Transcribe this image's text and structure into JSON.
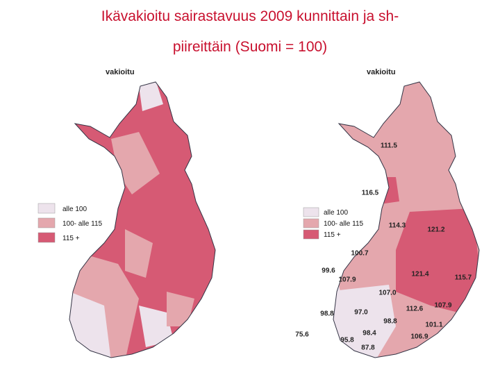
{
  "title_lines": [
    "Ikävakioitu sairastavuus 2009 kunnittain ja sh-",
    "piireittäin (Suomi = 100)"
  ],
  "maps": [
    {
      "heading": "vakioitu",
      "legend": [
        "alle 100",
        "100- alle 115",
        "115 +"
      ]
    },
    {
      "heading": "vakioitu",
      "legend": [
        "alle 100",
        "100- alle 115",
        "115 +"
      ],
      "labels": [
        "111.5",
        "116.5",
        "114.3",
        "121.2",
        "100.7",
        "99.6",
        "107.9",
        "121.4",
        "115.7",
        "107.0",
        "112.6",
        "107.9",
        "98.8",
        "97.0",
        "98.8",
        "101.1",
        "75.6",
        "98.4",
        "106.9",
        "95.8",
        "87.8"
      ]
    }
  ]
}
